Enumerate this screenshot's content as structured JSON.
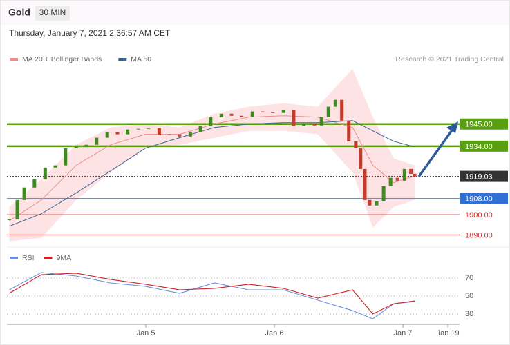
{
  "header": {
    "title": "Gold",
    "interval": "30 MIN",
    "datetime": "Thursday, January 7, 2021 2:36:57 AM CET",
    "credit": "Research © 2021 Trading Central"
  },
  "chart_data": [
    {
      "type": "candlestick",
      "x": [
        -1.5,
        0,
        1.3,
        3.2,
        5.2,
        7.1,
        9,
        11,
        12.9,
        14.8,
        16.8,
        18.7,
        20.6,
        22.6,
        24.5,
        26.5,
        28.4,
        30.3,
        32.3,
        34.2,
        36.1,
        38.1,
        40,
        41.9,
        43.9,
        45.8,
        47.7,
        49.7,
        51.6,
        53.5,
        55.5,
        56.8,
        58.1,
        59.4,
        60.6,
        61.9,
        63.2,
        64.1,
        64.9,
        65.8,
        67.1,
        68.4,
        69.7,
        71,
        72.3,
        73.5,
        74.2
      ],
      "series": [
        {
          "name": "Price",
          "values": [
            1897.7,
            1907.3,
            1913.5,
            1917.6,
            1923.4,
            1924.5,
            1933,
            1933.7,
            1934.7,
            1938.2,
            1940.9,
            1939.9,
            1942.3,
            1942.6,
            1943,
            1939.5,
            1939.9,
            1938.8,
            1940.9,
            1944,
            1948.4,
            1950.1,
            1949.1,
            1948.4,
            1951.2,
            1950.8,
            1950.5,
            1951.8,
            1944,
            1945,
            1944.3,
            1948.4,
            1953.6,
            1957,
            1946.7,
            1936.4,
            1933,
            1922.7,
            1907.3,
            1904.6,
            1906.6,
            1914.2,
            1918.3,
            1916.9,
            1922.7,
            1920.3,
            1919.03
          ]
        }
      ],
      "indicators": [
        {
          "name": "MA 20 + Bollinger Bands",
          "color": "#f08a8a",
          "band_color": "#fde3e3",
          "x": [
            -1.5,
            4.5,
            11,
            17.4,
            23.9,
            30.3,
            36.8,
            43.2,
            49.7,
            56.1,
            62.6,
            66.4,
            70.3,
            74.2
          ],
          "values": [
            1897,
            1907.3,
            1924.5,
            1934.7,
            1939.9,
            1939.9,
            1945,
            1948.4,
            1949.1,
            1948.4,
            1943.3,
            1924.5,
            1915.9,
            1919.3
          ],
          "upper": [
            1903.9,
            1917.6,
            1934.7,
            1943.3,
            1945,
            1943.3,
            1950.1,
            1953.6,
            1955.3,
            1953.6,
            1972.4,
            1948.4,
            1927.9,
            1924.5
          ],
          "lower": [
            1886.8,
            1888.5,
            1907.3,
            1921,
            1933,
            1934.7,
            1938.2,
            1941.6,
            1941.6,
            1939.9,
            1921,
            1893.6,
            1903.9,
            1907.3
          ]
        },
        {
          "name": "MA 50",
          "color": "#3b6494",
          "x": [
            -1.5,
            4.5,
            11,
            17.4,
            23.9,
            30.3,
            36.8,
            43.2,
            49.7,
            56.1,
            62.6,
            66.4,
            70.3,
            74.2
          ],
          "values": [
            1894.3,
            1900.5,
            1910.8,
            1921.7,
            1933,
            1938.2,
            1943.3,
            1945,
            1945.7,
            1945.7,
            1946.7,
            1941.6,
            1936.4,
            1933.7
          ]
        }
      ],
      "levels": [
        {
          "value": 1945,
          "value_label": "1945.00",
          "color": "#5a9e12",
          "style": "box"
        },
        {
          "value": 1934,
          "value_label": "1934.00",
          "color": "#5a9e12",
          "style": "box"
        },
        {
          "value": 1919.03,
          "value_label": "1919.03",
          "color": "#333333",
          "style": "last"
        },
        {
          "value": 1908,
          "value_label": "1908.00",
          "color": "#2f6fd6",
          "style": "box"
        },
        {
          "value": 1900,
          "value_label": "1900.00",
          "color": "#d03030",
          "style": "text"
        },
        {
          "value": 1890,
          "value_label": "1890.00",
          "color": "#d03030",
          "style": "text"
        }
      ],
      "xlim": [
        -1.94,
        82.58
      ],
      "xticks": [
        {
          "value": 24,
          "label": "Jan 5"
        },
        {
          "value": 48,
          "label": "Jan 6"
        },
        {
          "value": 72,
          "label": "Jan 7"
        },
        {
          "value": 80.4,
          "label": "Jan 19"
        }
      ],
      "ylim": [
        1885,
        1974
      ]
    },
    {
      "type": "line",
      "x": [
        -1.5,
        4.5,
        11,
        17.4,
        23.9,
        30.3,
        36.8,
        43.2,
        49.7,
        56.1,
        62.6,
        66.4,
        70.3,
        74.2
      ],
      "series": [
        {
          "name": "RSI",
          "color": "#6a8fdc",
          "values": [
            56.9,
            76.2,
            72.3,
            64.6,
            60.8,
            53.1,
            64.6,
            56.9,
            56.9,
            45.4,
            33.8,
            24.6,
            41.5,
            43.8
          ]
        },
        {
          "name": "9MA",
          "color": "#d02020",
          "values": [
            53.1,
            73.8,
            75.4,
            68.5,
            63.1,
            56.9,
            58.5,
            63.1,
            58.5,
            47.7,
            56.9,
            30,
            41.5,
            44.6
          ]
        }
      ],
      "ylim": [
        18.5,
        83.8
      ],
      "yticks": [
        70,
        50,
        30
      ]
    }
  ]
}
